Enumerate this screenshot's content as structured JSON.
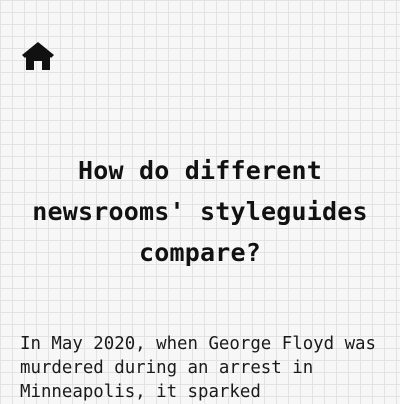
{
  "header": {
    "home_icon": "home-icon",
    "home_color": "#111111"
  },
  "main": {
    "title": "How do different newsrooms' styleguides compare?",
    "intro": "In May 2020, when George Floyd was murdered during an arrest in Minneapolis, it sparked"
  },
  "colors": {
    "background": "#f7f7f7",
    "grid": "#e3e3e3",
    "text": "#111111"
  }
}
